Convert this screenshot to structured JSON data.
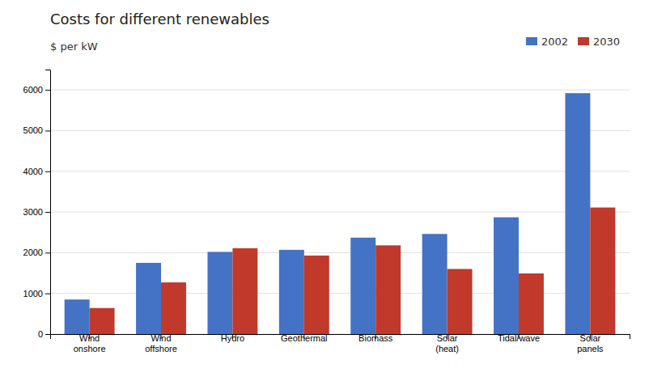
{
  "chart_data": {
    "type": "bar",
    "title": "Costs for different renewables",
    "ylabel": "$ per kW",
    "categories": [
      "Wind\nonshore",
      "Wind\noffshore",
      "Hydro",
      "Geothermal",
      "Biomass",
      "Solar\n(heat)",
      "Tidal/wave",
      "Solar\npanels"
    ],
    "series": [
      {
        "name": "2002",
        "color": "#4472C4",
        "values": [
          850,
          1750,
          2020,
          2070,
          2370,
          2460,
          2870,
          5920
        ]
      },
      {
        "name": "2030",
        "color": "#C0392B",
        "values": [
          640,
          1270,
          2110,
          1930,
          2180,
          1600,
          1490,
          3110
        ]
      }
    ],
    "ylim": [
      0,
      6500
    ],
    "yticks": [
      0,
      1000,
      2000,
      3000,
      4000,
      5000,
      6000
    ],
    "grid": true,
    "legend": "upper right"
  }
}
